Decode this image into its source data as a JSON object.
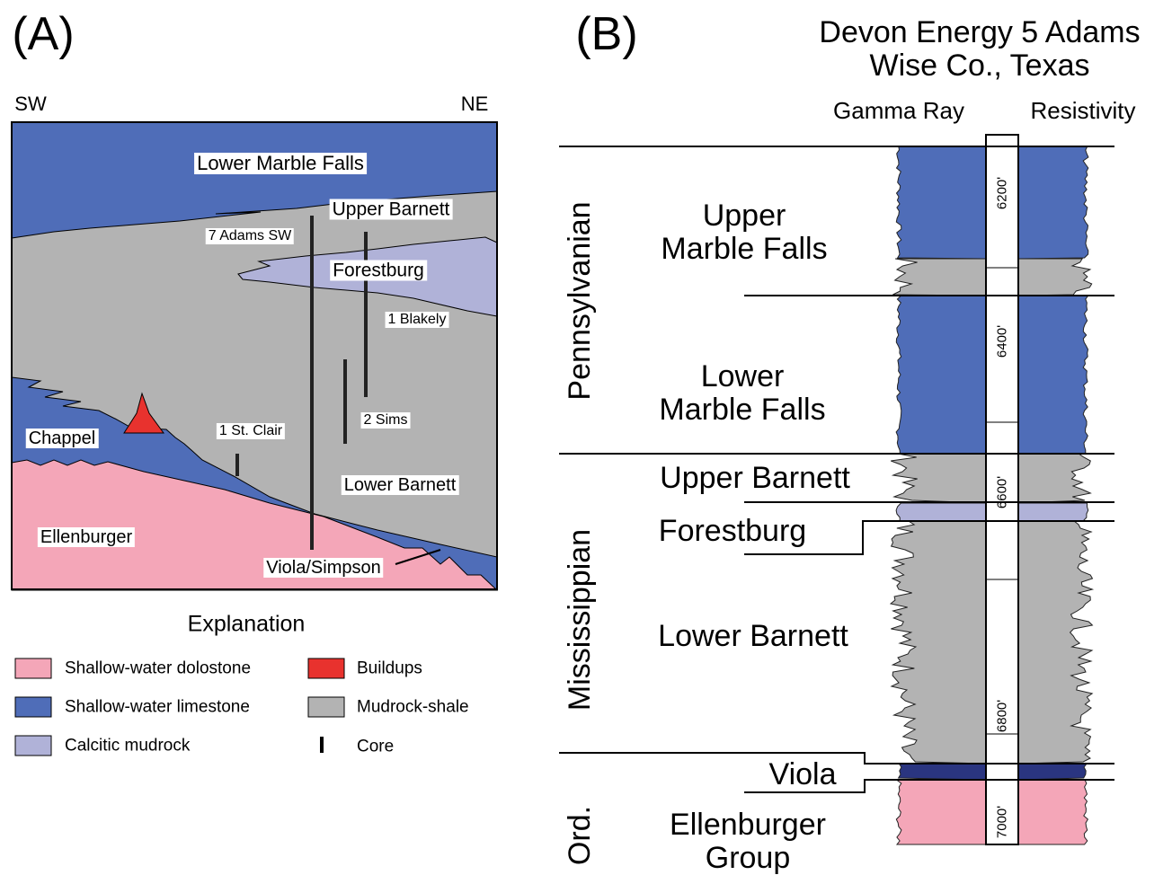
{
  "panel_a": {
    "label": "(A)",
    "directions": [
      "SW",
      "NE"
    ],
    "units": [
      "Lower Marble Falls",
      "Upper Barnett",
      "Forestburg",
      "Chappel",
      "Ellenburger",
      "Lower Barnett",
      "Viola/Simpson"
    ],
    "wells": [
      "7 Adams SW",
      "1 Blakely",
      "2 Sims",
      "1 St. Clair"
    ],
    "explanation": {
      "title": "Explanation",
      "items": [
        "Shallow-water dolostone",
        "Shallow-water limestone",
        "Calcitic mudrock",
        "Buildups",
        "Mudrock-shale",
        "Core"
      ]
    }
  },
  "panel_b": {
    "label": "(B)",
    "title": [
      "Devon Energy 5 Adams",
      "Wise Co., Texas"
    ],
    "columns": [
      "Gamma Ray",
      "Resistivity"
    ],
    "periods": [
      "Pennsylvanian",
      "Mississippian",
      "Ord."
    ],
    "units": [
      [
        "Upper",
        "Marble Falls"
      ],
      [
        "Lower",
        "Marble Falls"
      ],
      [
        "Upper Barnett"
      ],
      [
        "Forestburg"
      ],
      [
        "Lower Barnett"
      ],
      [
        "Viola"
      ],
      [
        "Ellenburger",
        "Group"
      ]
    ],
    "depths": [
      "6200'",
      "6400'",
      "6600'",
      "6800'",
      "7000'"
    ]
  }
}
